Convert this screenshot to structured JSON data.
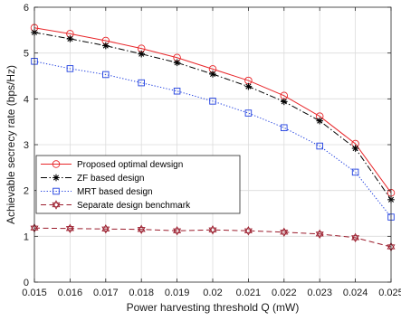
{
  "chart_data": {
    "type": "line",
    "xlabel": "Power harvesting threshold Q (mW)",
    "ylabel": "Achievable secrecy rate (bps/Hz)",
    "xlim": [
      0.015,
      0.025
    ],
    "ylim": [
      0,
      6
    ],
    "grid": true,
    "legend_position": "lower-left",
    "x": [
      0.015,
      0.016,
      0.017,
      0.018,
      0.019,
      0.02,
      0.021,
      0.022,
      0.023,
      0.024,
      0.025
    ],
    "x_tick_labels": [
      "0.015",
      "0.016",
      "0.017",
      "0.018",
      "0.019",
      "0.02",
      "0.021",
      "0.022",
      "0.023",
      "0.024",
      "0.025"
    ],
    "y_ticks": [
      0,
      1,
      2,
      3,
      4,
      5,
      6
    ],
    "y_tick_labels": [
      "0",
      "1",
      "2",
      "3",
      "4",
      "5",
      "6"
    ],
    "series": [
      {
        "name": "Proposed optimal dewsign",
        "values": [
          5.55,
          5.42,
          5.27,
          5.1,
          4.9,
          4.65,
          4.4,
          4.07,
          3.62,
          3.02,
          1.95
        ],
        "color": "#e8262a",
        "line_style": "solid",
        "marker": "circle"
      },
      {
        "name": "ZF based design",
        "values": [
          5.45,
          5.31,
          5.16,
          4.98,
          4.79,
          4.54,
          4.27,
          3.94,
          3.52,
          2.92,
          1.8
        ],
        "color": "#000000",
        "line_style": "dashdot",
        "marker": "star"
      },
      {
        "name": "MRT based design",
        "values": [
          4.82,
          4.66,
          4.53,
          4.35,
          4.17,
          3.95,
          3.69,
          3.37,
          2.97,
          2.4,
          1.42
        ],
        "color": "#1f3fe0",
        "line_style": "dotted",
        "marker": "square"
      },
      {
        "name": "Separate design benchmark",
        "values": [
          1.18,
          1.17,
          1.16,
          1.15,
          1.12,
          1.14,
          1.12,
          1.09,
          1.05,
          0.97,
          0.77
        ],
        "color": "#9b1c2c",
        "line_style": "dashed",
        "marker": "hexagram"
      }
    ]
  }
}
